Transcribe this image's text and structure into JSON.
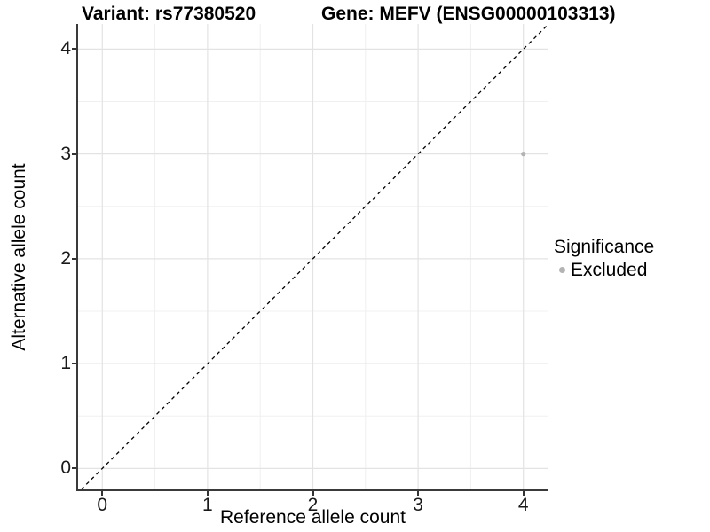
{
  "chart_data": {
    "type": "scatter",
    "title_left": "Variant: rs77380520",
    "title_right": "Gene: MEFV (ENSG00000103313)",
    "xlabel": "Reference allele count",
    "ylabel": "Alternative allele count",
    "xlim": [
      -0.23,
      4.23
    ],
    "ylim": [
      -0.2,
      4.24
    ],
    "x_ticks": [
      0,
      1,
      2,
      3,
      4
    ],
    "y_ticks": [
      0,
      1,
      2,
      3,
      4
    ],
    "minor_breaks": [
      0.5,
      1.5,
      2.5,
      3.5
    ],
    "grid": "major+minor",
    "series": [
      {
        "name": "Excluded",
        "color": "#b3b3b3",
        "points": [
          {
            "x": 4,
            "y": 3
          }
        ]
      }
    ],
    "reference_line": {
      "type": "identity",
      "slope": 1,
      "intercept": 0,
      "style": "dashed",
      "color": "#000000"
    },
    "legend": {
      "title": "Significance",
      "position": "right",
      "items": [
        {
          "label": "Excluded",
          "color": "#b3b3b3"
        }
      ]
    },
    "colors": {
      "major_grid": "#e3e3e3",
      "minor_grid": "#f0f0f0",
      "axis_line": "#3a3a3a",
      "tick_text": "#1a1a1a",
      "background": "#ffffff"
    }
  }
}
